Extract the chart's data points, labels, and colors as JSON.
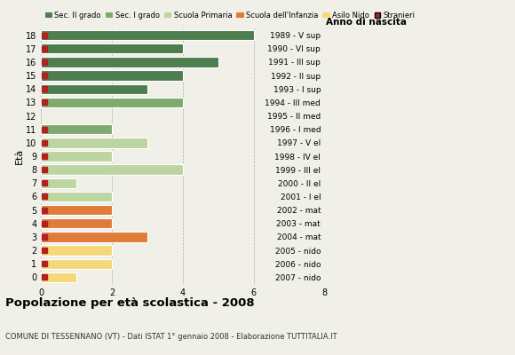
{
  "ages": [
    18,
    17,
    16,
    15,
    14,
    13,
    12,
    11,
    10,
    9,
    8,
    7,
    6,
    5,
    4,
    3,
    2,
    1,
    0
  ],
  "values": [
    6,
    4,
    5,
    4,
    3,
    4,
    0,
    2,
    3,
    2,
    4,
    1,
    2,
    2,
    2,
    3,
    2,
    2,
    1
  ],
  "anno_nascita": [
    "1989 - V sup",
    "1990 - VI sup",
    "1991 - III sup",
    "1992 - II sup",
    "1993 - I sup",
    "1994 - III med",
    "1995 - II med",
    "1996 - I med",
    "1997 - V el",
    "1998 - IV el",
    "1999 - III el",
    "2000 - II el",
    "2001 - I el",
    "2002 - mat",
    "2003 - mat",
    "2004 - mat",
    "2005 - nido",
    "2006 - nido",
    "2007 - nido"
  ],
  "bar_colors": [
    "#4e7d4e",
    "#4e7d4e",
    "#4e7d4e",
    "#4e7d4e",
    "#4e7d4e",
    "#7faa6e",
    "#7faa6e",
    "#7faa6e",
    "#bdd5a0",
    "#bdd5a0",
    "#bdd5a0",
    "#bdd5a0",
    "#bdd5a0",
    "#e07b39",
    "#e07b39",
    "#e07b39",
    "#f5d87a",
    "#f5d87a",
    "#f5d87a"
  ],
  "stranieri_ages": [
    18,
    17,
    16,
    15,
    14,
    13,
    12,
    11,
    10,
    9,
    8,
    7,
    6,
    5,
    4,
    3,
    2,
    1,
    0
  ],
  "color_sec2": "#4e7d4e",
  "color_sec1": "#7faa6e",
  "color_prim": "#bdd5a0",
  "color_inf": "#e07b39",
  "color_nido": "#f5d87a",
  "color_stranieri": "#b22020",
  "title": "Popolazione per età scolastica - 2008",
  "subtitle": "COMUNE DI TESSENNANO (VT) - Dati ISTAT 1° gennaio 2008 - Elaborazione TUTTITALIA.IT",
  "ylabel_left": "Età",
  "ylabel_right": "Anno di nascita",
  "xlim": [
    0,
    8
  ],
  "xticks": [
    0,
    2,
    4,
    6,
    8
  ],
  "legend_labels": [
    "Sec. II grado",
    "Sec. I grado",
    "Scuola Primaria",
    "Scuola dell'Infanzia",
    "Asilo Nido",
    "Stranieri"
  ],
  "background_color": "#f0f0e8"
}
